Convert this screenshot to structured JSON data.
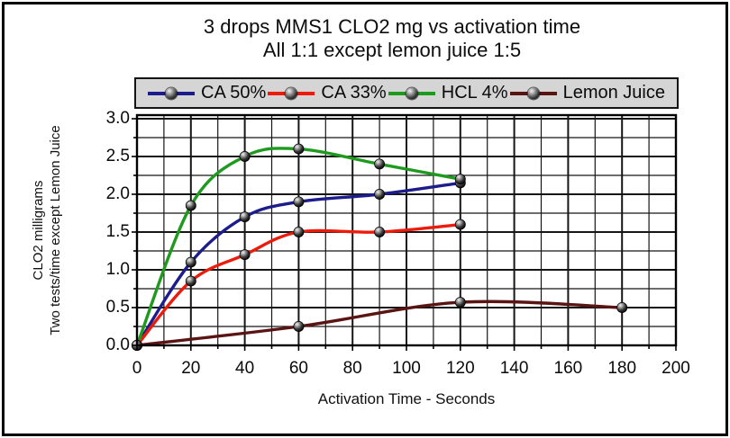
{
  "title": "3 drops MMS1 CLO2 mg vs activation time",
  "subtitle": "All 1:1 except lemon juice 1:5",
  "colors": {
    "ca50": "#1c1c8c",
    "ca33": "#ec1c0c",
    "hcl4": "#1e9a1e",
    "lemon": "#5a1414",
    "grid": "#161616",
    "plot_border": "#000000",
    "legend_bg": "#d5d5d5",
    "marker": "#0a0a0a"
  },
  "chart_data": {
    "type": "line",
    "title": "3 drops MMS1 CLO2 mg vs activation time",
    "subtitle": "All 1:1 except lemon juice 1:5",
    "xlabel": "Activation Time - Seconds",
    "ylabel_line1": "CLO2 milligrams",
    "ylabel_line2": "Two tests/time except Lemon Juice",
    "xlim": [
      0,
      200
    ],
    "ylim": [
      0,
      3.05
    ],
    "x_major_tick_step": 20,
    "x_minor_tick_step": 10,
    "y_major_tick_step": 0.5,
    "y_minor_tick_step": 0.25,
    "x_tick_labels": [
      "0",
      "20",
      "40",
      "60",
      "80",
      "100",
      "120",
      "140",
      "160",
      "180",
      "200"
    ],
    "y_tick_labels": [
      "0.0",
      "0.5",
      "1.0",
      "1.5",
      "2.0",
      "2.5",
      "3.0"
    ],
    "grid": "on",
    "legend_position": "top",
    "marker_style": "3d-ball",
    "series": [
      {
        "name": "CA 50%",
        "color": "#1c1c8c",
        "x": [
          0,
          20,
          40,
          60,
          90,
          120
        ],
        "y": [
          0,
          1.1,
          1.7,
          1.9,
          2.0,
          2.15
        ]
      },
      {
        "name": "CA 33%",
        "color": "#ec1c0c",
        "x": [
          0,
          20,
          40,
          60,
          90,
          120
        ],
        "y": [
          0,
          0.85,
          1.2,
          1.5,
          1.5,
          1.6
        ]
      },
      {
        "name": "HCL 4%",
        "color": "#1e9a1e",
        "x": [
          0,
          20,
          40,
          60,
          90,
          120
        ],
        "y": [
          0,
          1.85,
          2.5,
          2.6,
          2.4,
          2.2
        ]
      },
      {
        "name": "Lemon Juice",
        "color": "#5a1414",
        "x": [
          0,
          60,
          120,
          180
        ],
        "y": [
          0,
          0.25,
          0.57,
          0.5
        ]
      }
    ]
  }
}
